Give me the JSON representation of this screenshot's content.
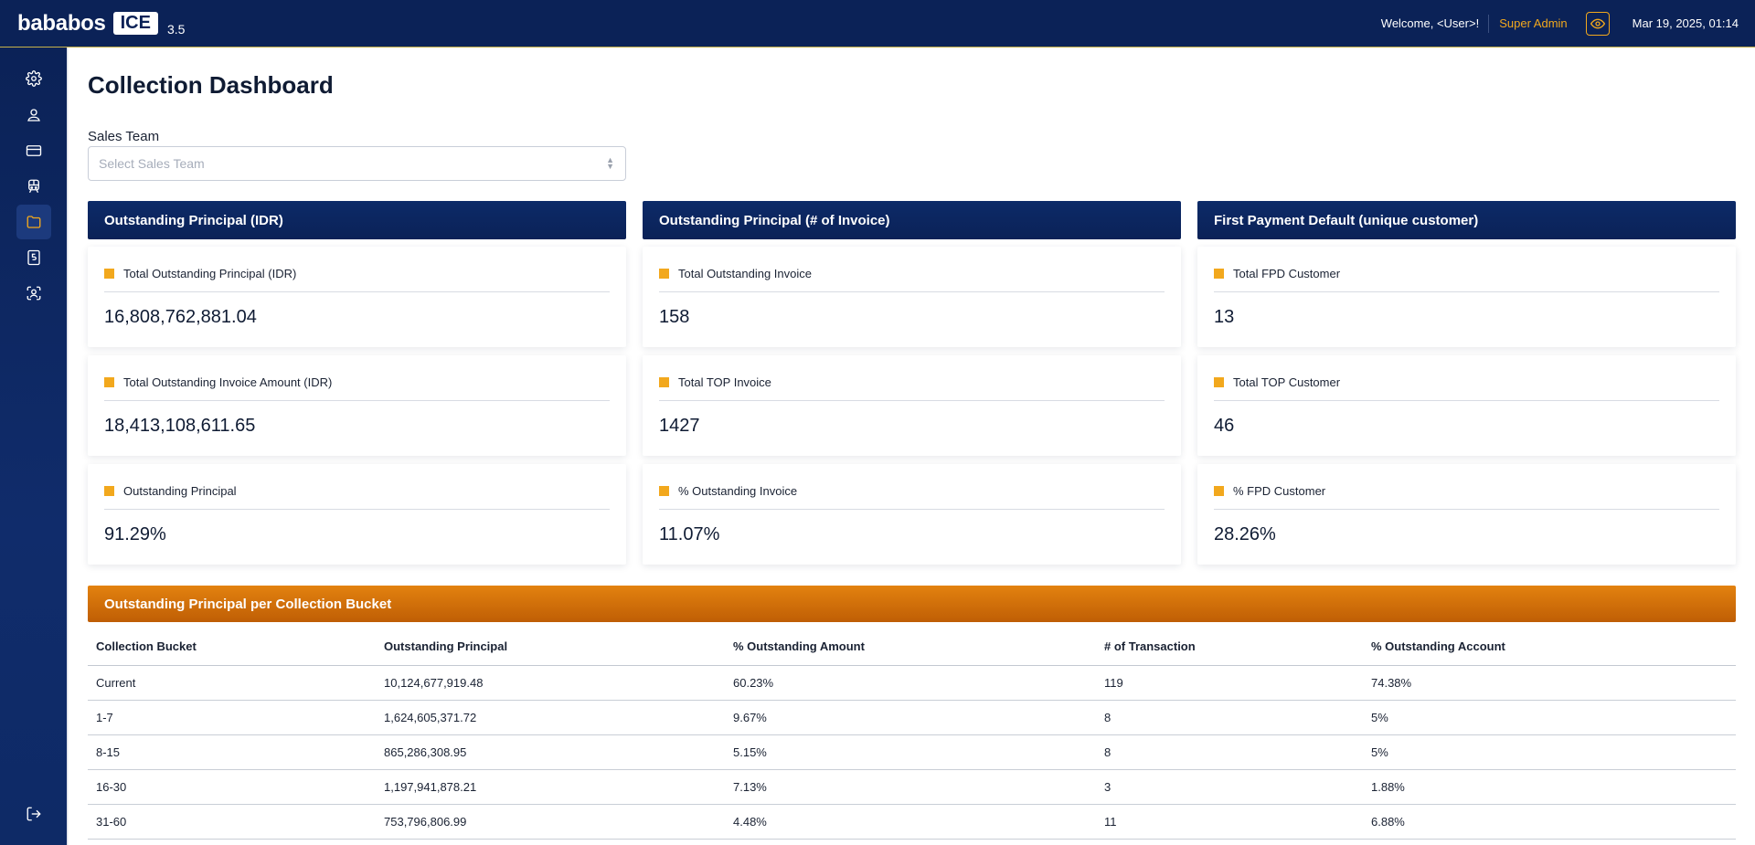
{
  "topbar": {
    "brand_name": "bababos",
    "brand_badge": "ICE",
    "version": "3.5",
    "welcome": "Welcome, <User>!",
    "role": "Super Admin",
    "datetime": "Mar 19, 2025, 01:14",
    "colors": {
      "background": "#0b2257",
      "accent": "#f2a81d"
    }
  },
  "sidebar": {
    "items": [
      {
        "icon": "gear-icon"
      },
      {
        "icon": "user-icon"
      },
      {
        "icon": "credit-card-icon"
      },
      {
        "icon": "train-icon"
      },
      {
        "icon": "folder-icon",
        "active": true
      },
      {
        "icon": "document-five-icon"
      },
      {
        "icon": "face-scan-icon"
      }
    ],
    "logout_icon": "logout-icon"
  },
  "page": {
    "title": "Collection Dashboard",
    "filter": {
      "label": "Sales Team",
      "placeholder": "Select Sales Team"
    }
  },
  "panels": [
    {
      "title": "Outstanding Principal (IDR)",
      "cards": [
        {
          "label": "Total Outstanding Principal (IDR)",
          "value": "16,808,762,881.04"
        },
        {
          "label": "Total Outstanding Invoice Amount (IDR)",
          "value": "18,413,108,611.65"
        },
        {
          "label": "Outstanding Principal",
          "value": "91.29%"
        }
      ]
    },
    {
      "title": "Outstanding Principal (# of Invoice)",
      "cards": [
        {
          "label": "Total Outstanding Invoice",
          "value": "158"
        },
        {
          "label": "Total TOP Invoice",
          "value": "1427"
        },
        {
          "label": "% Outstanding Invoice",
          "value": "11.07%"
        }
      ]
    },
    {
      "title": "First Payment Default (unique customer)",
      "cards": [
        {
          "label": "Total FPD Customer",
          "value": "13"
        },
        {
          "label": "Total TOP Customer",
          "value": "46"
        },
        {
          "label": "% FPD Customer",
          "value": "28.26%"
        }
      ]
    }
  ],
  "bucket_table": {
    "title": "Outstanding Principal per Collection Bucket",
    "header_color": "#e3820f",
    "columns": [
      "Collection Bucket",
      "Outstanding Principal",
      "% Outstanding Amount",
      "# of Transaction",
      "% Outstanding Account"
    ],
    "rows": [
      [
        "Current",
        "10,124,677,919.48",
        "60.23%",
        "119",
        "74.38%"
      ],
      [
        "1-7",
        "1,624,605,371.72",
        "9.67%",
        "8",
        "5%"
      ],
      [
        "8-15",
        "865,286,308.95",
        "5.15%",
        "8",
        "5%"
      ],
      [
        "16-30",
        "1,197,941,878.21",
        "7.13%",
        "3",
        "1.88%"
      ],
      [
        "31-60",
        "753,796,806.99",
        "4.48%",
        "11",
        "6.88%"
      ]
    ]
  }
}
